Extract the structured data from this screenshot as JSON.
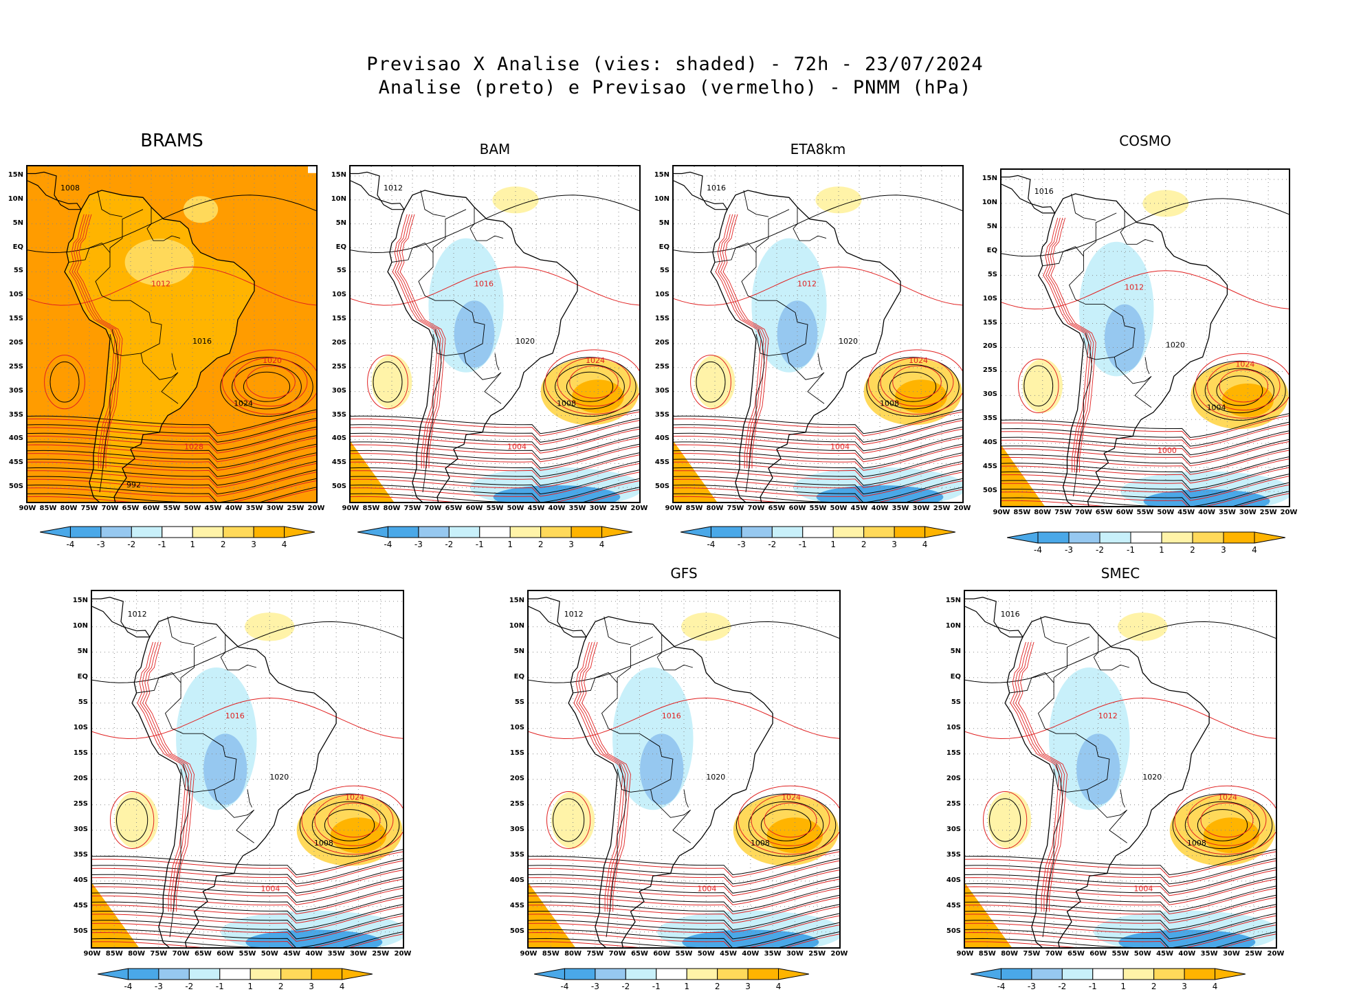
{
  "title": {
    "line1": "Previsao X Analise (vies: shaded) - 72h - 23/07/2024",
    "line2": "Analise (preto) e Previsao (vermelho) - PNMM (hPa)"
  },
  "colors": {
    "strong_neg": "#4aa8e8",
    "mid_neg": "#96c8f0",
    "weak_neg": "#c8f0fa",
    "neutral": "#ffffff",
    "weak_pos": "#fff3a8",
    "mid_pos": "#ffd95a",
    "strong_pos": "#ffb400",
    "extreme_pos": "#ff9c00",
    "analysis_line": "#000000",
    "forecast_line": "#e02020"
  },
  "colorbar": {
    "labels": [
      "-4",
      "-3",
      "-2",
      "-1",
      "1",
      "2",
      "3",
      "4"
    ]
  },
  "axes": {
    "lat_labels": [
      "15N",
      "10N",
      "5N",
      "EQ",
      "5S",
      "10S",
      "15S",
      "20S",
      "25S",
      "30S",
      "35S",
      "40S",
      "45S",
      "50S"
    ],
    "lon_labels": [
      "90W",
      "85W",
      "80W",
      "75W",
      "70W",
      "65W",
      "60W",
      "55W",
      "50W",
      "45W",
      "40W",
      "35W",
      "30W",
      "25W",
      "20W"
    ]
  },
  "panels": [
    {
      "id": "brams",
      "title": "BRAMS",
      "contour_labels": [
        "1008",
        "1012",
        "1016",
        "1020",
        "1024",
        "1028",
        "992"
      ]
    },
    {
      "id": "bam",
      "title": "BAM",
      "contour_labels": [
        "1012",
        "1016",
        "1020",
        "1024",
        "1008",
        "1004"
      ]
    },
    {
      "id": "eta",
      "title": "ETA8km",
      "contour_labels": [
        "1016",
        "1012",
        "1020",
        "1024",
        "1008",
        "1004"
      ]
    },
    {
      "id": "cosmo",
      "title": "COSMO",
      "contour_labels": [
        "1016",
        "1012",
        "1020",
        "1024",
        "1004",
        "1000"
      ]
    },
    {
      "id": "panel5",
      "title": "",
      "contour_labels": [
        "1012",
        "1016",
        "1020",
        "1024",
        "1008",
        "1004"
      ]
    },
    {
      "id": "gfs",
      "title": "GFS",
      "contour_labels": [
        "1012",
        "1016",
        "1020",
        "1024",
        "1008",
        "1004"
      ]
    },
    {
      "id": "smec",
      "title": "SMEC",
      "contour_labels": [
        "1016",
        "1012",
        "1020",
        "1024",
        "1008",
        "1004"
      ]
    }
  ]
}
